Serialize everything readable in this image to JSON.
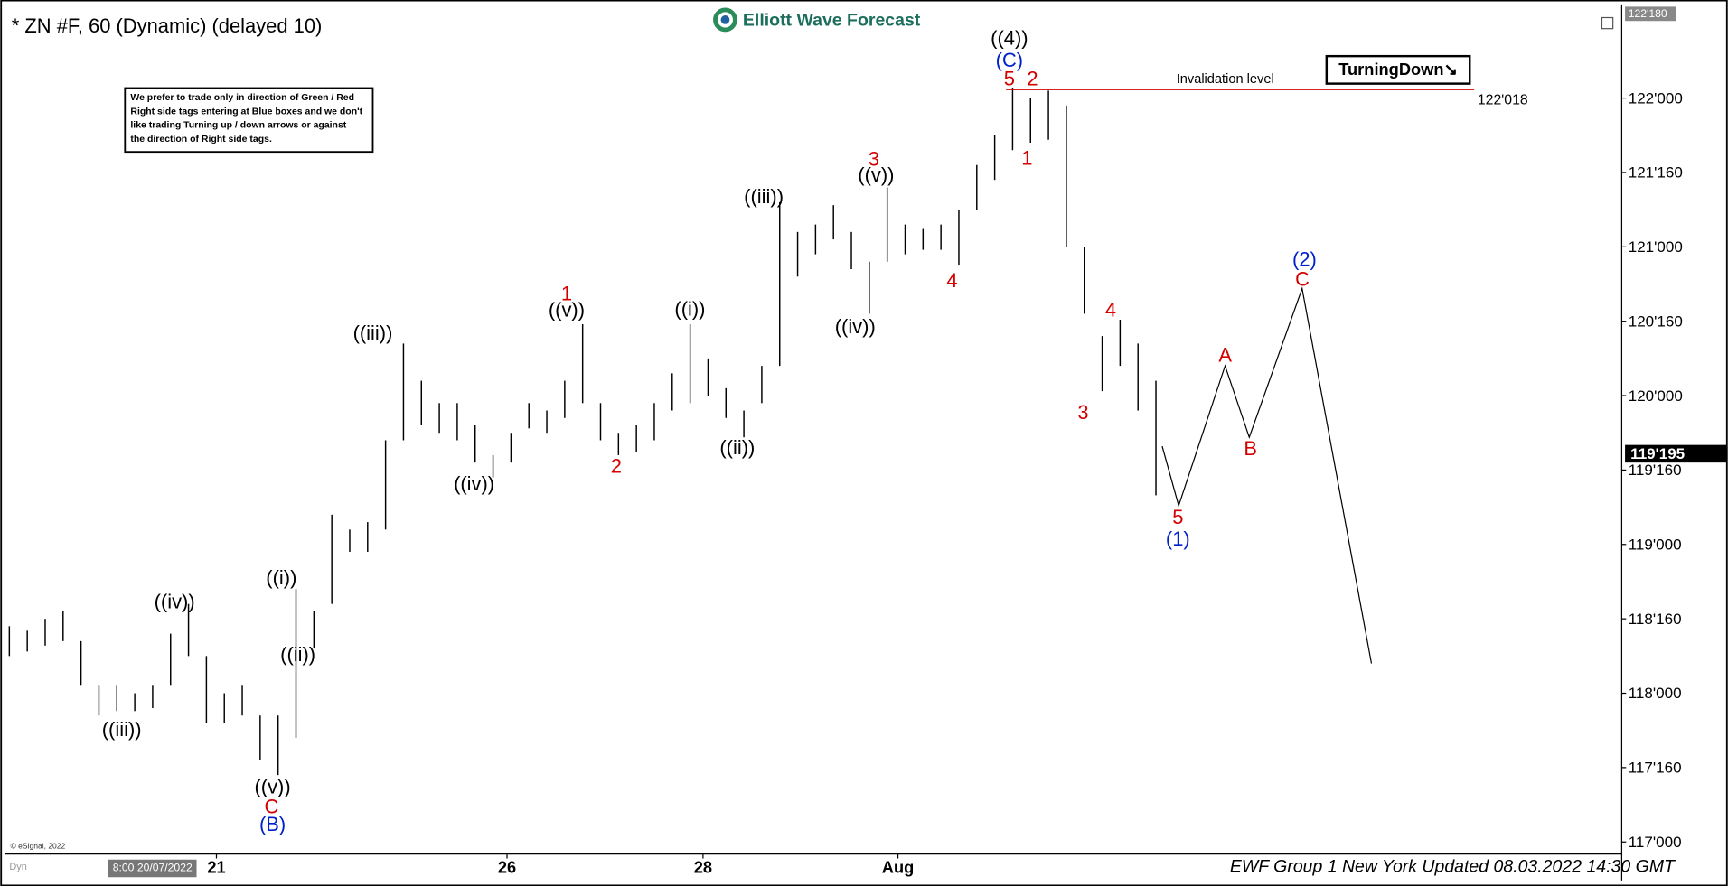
{
  "chart_data": {
    "type": "ohlc",
    "title": "* ZN #F, 60 (Dynamic) (delayed 10)",
    "logo": "Elliott Wave Forecast",
    "note": [
      "We prefer to trade only in direction of Green / Red",
      "Right side tags entering at Blue boxes and we don't",
      "like trading Turning up / down arrows or against",
      "the direction of Right side tags."
    ],
    "badge": "TurningDown↘",
    "footer": "EWF Group 1 New York Updated 08.03.2022 14:30 GMT",
    "source": "© eSignal, 2022",
    "cursor_label": "8:00 20/07/2022",
    "corner_label": "Dyn",
    "color": "#000000",
    "xlim": [
      0,
      90
    ],
    "xticks": [
      {
        "value": 11.56,
        "label": "21"
      },
      {
        "value": 27.78,
        "label": "26"
      },
      {
        "value": 38.72,
        "label": "28"
      },
      {
        "value": 49.6,
        "label": "Aug"
      }
    ],
    "ylim": [
      116.926,
      122.6
    ],
    "yticks": [
      {
        "value": 117,
        "label": "117'000"
      },
      {
        "value": 117.5,
        "label": "117'160"
      },
      {
        "value": 118,
        "label": "118'000"
      },
      {
        "value": 118.5,
        "label": "118'160"
      },
      {
        "value": 119,
        "label": "119'000"
      },
      {
        "value": 119.5,
        "label": "119'160"
      },
      {
        "value": 120,
        "label": "120'000"
      },
      {
        "value": 120.5,
        "label": "120'160"
      },
      {
        "value": 121,
        "label": "121'000"
      },
      {
        "value": 121.5,
        "label": "121'160"
      },
      {
        "value": 122,
        "label": "122'000"
      }
    ],
    "top_label": {
      "value": 122.5625,
      "label": "122'180"
    },
    "last_price": {
      "value": 119.609375,
      "label": "119'195"
    },
    "invalidation": {
      "text": "Invalidation level",
      "value": 122.05625,
      "label": "122'018",
      "color": "#d40000"
    },
    "high": [
      118.45,
      118.42,
      118.5,
      118.55,
      118.35,
      118.05,
      118.05,
      118.0,
      118.05,
      118.4,
      118.6,
      118.25,
      118.0,
      118.05,
      117.85,
      117.85,
      118.7,
      118.55,
      119.2,
      119.1,
      119.15,
      119.7,
      120.35,
      120.1,
      119.95,
      119.95,
      119.8,
      119.6,
      119.75,
      119.95,
      119.9,
      120.1,
      120.48,
      119.95,
      119.75,
      119.8,
      119.95,
      120.15,
      120.48,
      120.25,
      120.05,
      119.9,
      120.2,
      121.3,
      121.1,
      121.15,
      121.28,
      121.1,
      120.9,
      121.4,
      121.15,
      121.12,
      121.15,
      121.25,
      121.55,
      121.75,
      122.07,
      122.0,
      122.05,
      121.95,
      121.0,
      120.4,
      120.51,
      120.35,
      120.1
    ],
    "low": [
      118.25,
      118.28,
      118.32,
      118.35,
      118.05,
      117.85,
      117.88,
      117.88,
      117.9,
      118.05,
      118.25,
      117.8,
      117.8,
      117.85,
      117.55,
      117.45,
      117.7,
      118.3,
      118.6,
      118.95,
      118.95,
      119.1,
      119.7,
      119.8,
      119.75,
      119.7,
      119.55,
      119.45,
      119.55,
      119.78,
      119.75,
      119.85,
      119.95,
      119.7,
      119.6,
      119.62,
      119.7,
      119.9,
      119.95,
      120.0,
      119.85,
      119.72,
      119.95,
      120.2,
      120.8,
      120.95,
      121.05,
      120.85,
      120.55,
      120.9,
      120.95,
      120.98,
      120.98,
      120.88,
      121.25,
      121.45,
      121.65,
      121.7,
      121.72,
      121.0,
      120.55,
      120.03,
      120.2,
      119.9,
      119.33
    ],
    "projection": {
      "x": [
        64.35,
        65.27,
        67.86,
        69.21,
        72.16,
        76.03
      ],
      "values": [
        119.66,
        119.26,
        120.2,
        119.72,
        120.72,
        118.2
      ],
      "color": "#000000"
    },
    "annotations": [
      {
        "text": "((iii))",
        "color": "#000000"
      },
      {
        "text": "((iv))",
        "color": "#000000"
      },
      {
        "text": "((v))",
        "color": "#000000"
      },
      {
        "text": "C",
        "color": "#d40000"
      },
      {
        "text": "(B)",
        "color": "#0022cc"
      },
      {
        "text": "((i))",
        "color": "#000000"
      },
      {
        "text": "((ii))",
        "color": "#000000"
      },
      {
        "text": "((iii))",
        "color": "#000000"
      },
      {
        "text": "((iv))",
        "color": "#000000"
      },
      {
        "text": "1",
        "color": "#d40000"
      },
      {
        "text": "((v))",
        "color": "#000000"
      },
      {
        "text": "2",
        "color": "#d40000"
      },
      {
        "text": "((i))",
        "color": "#000000"
      },
      {
        "text": "((ii))",
        "color": "#000000"
      },
      {
        "text": "((iii))",
        "color": "#000000"
      },
      {
        "text": "3",
        "color": "#d40000"
      },
      {
        "text": "((v))",
        "color": "#000000"
      },
      {
        "text": "((iv))",
        "color": "#000000"
      },
      {
        "text": "4",
        "color": "#d40000"
      },
      {
        "text": "((4))",
        "color": "#000000"
      },
      {
        "text": "(C)",
        "color": "#0022cc"
      },
      {
        "text": "5",
        "color": "#d40000"
      },
      {
        "text": "2",
        "color": "#d40000"
      },
      {
        "text": "1",
        "color": "#d40000"
      },
      {
        "text": "3",
        "color": "#d40000"
      },
      {
        "text": "4",
        "color": "#d40000"
      },
      {
        "text": "5",
        "color": "#d40000"
      },
      {
        "text": "(1)",
        "color": "#0022cc"
      },
      {
        "text": "A",
        "color": "#d40000"
      },
      {
        "text": "B",
        "color": "#d40000"
      },
      {
        "text": "(2)",
        "color": "#0022cc"
      },
      {
        "text": "C",
        "color": "#d40000"
      }
    ]
  }
}
